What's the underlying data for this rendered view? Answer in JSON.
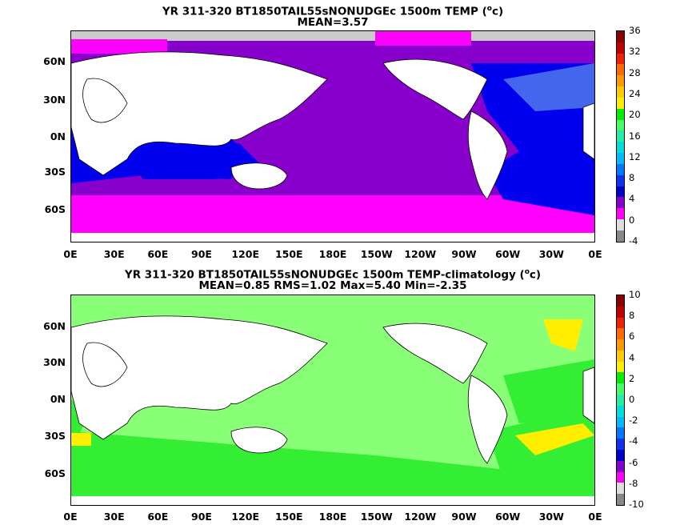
{
  "panels": [
    {
      "title_line1": "YR 311-320 BT1850TAIL55sNONUDGEc 1500m TEMP (",
      "title_unit": "o",
      "title_unit_end": "c)",
      "title_line2": "MEAN=3.57",
      "colorbar": {
        "labels": [
          "36",
          "32",
          "28",
          "24",
          "20",
          "16",
          "12",
          "8",
          "4",
          "0",
          "-4"
        ],
        "colors": [
          "#8b0000",
          "#c00000",
          "#ee2200",
          "#ff6a00",
          "#ff9900",
          "#ffcc00",
          "#ffee00",
          "#00ee00",
          "#44ff66",
          "#22eeaa",
          "#00dddd",
          "#00bbff",
          "#0077ff",
          "#1133ee",
          "#0000cc",
          "#8800cc",
          "#ff00ff",
          "#dddddd",
          "#888888"
        ]
      },
      "fields": {
        "arctic": "#cccccc",
        "atlantic_north": "#4466ee",
        "atlantic": "#0000ee",
        "indian": "#0000ee",
        "pacific": "#8800cc",
        "southern_band": "#8800cc",
        "southern": "#ff00ff"
      }
    },
    {
      "title_line1": "YR 311-320 BT1850TAIL55sNONUDGEc 1500m TEMP-climatology (",
      "title_unit": "o",
      "title_unit_end": "c)",
      "title_line2": "MEAN=0.85   RMS=1.02   Max=5.40   Min=-2.35",
      "colorbar": {
        "labels": [
          "10",
          "8",
          "6",
          "4",
          "2",
          "0",
          "-2",
          "-4",
          "-6",
          "-8",
          "-10"
        ],
        "colors": [
          "#8b0000",
          "#c00000",
          "#ee2200",
          "#ff6a00",
          "#ff9900",
          "#ffcc00",
          "#ffee00",
          "#00ee00",
          "#44ff66",
          "#22eeaa",
          "#00dddd",
          "#00bbff",
          "#0077ff",
          "#1133ee",
          "#0000cc",
          "#8800cc",
          "#ff00ff",
          "#dddddd",
          "#888888"
        ]
      },
      "fields": {
        "background": "#88ff77",
        "lightgreen": "#88ff77",
        "green": "#33ee33",
        "yellow": "#ffee00",
        "teal": "#22eeaa"
      }
    }
  ],
  "axes": {
    "y_labels": [
      "60N",
      "30N",
      "0N",
      "30S",
      "60S"
    ],
    "x_labels": [
      "0E",
      "30E",
      "60E",
      "90E",
      "120E",
      "150E",
      "180E",
      "150W",
      "120W",
      "90W",
      "60W",
      "30W",
      "0E"
    ]
  }
}
